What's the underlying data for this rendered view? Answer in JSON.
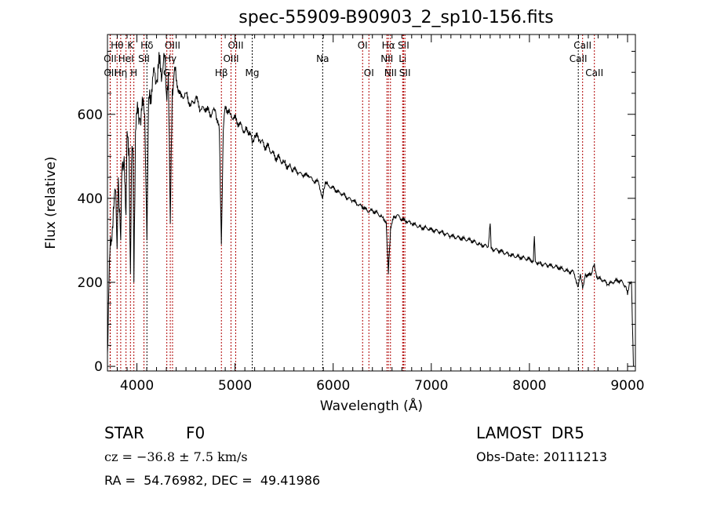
{
  "chart_data": {
    "type": "line",
    "title": "spec-55909-B90903_2_sp10-156.fits",
    "xlabel": "Wavelength (Å)",
    "ylabel": "Flux (relative)",
    "xlim": [
      3700,
      9080
    ],
    "ylim": [
      -11,
      790
    ],
    "xticks": [
      4000,
      5000,
      6000,
      7000,
      8000,
      9000
    ],
    "yticks": [
      0,
      200,
      400,
      600
    ],
    "grid": false,
    "series": [
      {
        "name": "spectrum",
        "points": [
          [
            3700,
            30
          ],
          [
            3710,
            150
          ],
          [
            3720,
            250
          ],
          [
            3740,
            300
          ],
          [
            3760,
            380
          ],
          [
            3780,
            420
          ],
          [
            3798,
            280
          ],
          [
            3810,
            450
          ],
          [
            3835,
            300
          ],
          [
            3850,
            480
          ],
          [
            3870,
            500
          ],
          [
            3889,
            360
          ],
          [
            3900,
            560
          ],
          [
            3920,
            520
          ],
          [
            3934,
            220
          ],
          [
            3945,
            480
          ],
          [
            3960,
            520
          ],
          [
            3969,
            200
          ],
          [
            3985,
            560
          ],
          [
            4000,
            600
          ],
          [
            4030,
            590
          ],
          [
            4060,
            620
          ],
          [
            4080,
            600
          ],
          [
            4102,
            300
          ],
          [
            4120,
            640
          ],
          [
            4150,
            660
          ],
          [
            4180,
            700
          ],
          [
            4200,
            680
          ],
          [
            4230,
            720
          ],
          [
            4260,
            700
          ],
          [
            4280,
            740
          ],
          [
            4300,
            650
          ],
          [
            4320,
            700
          ],
          [
            4340,
            340
          ],
          [
            4360,
            660
          ],
          [
            4380,
            700
          ],
          [
            4400,
            680
          ],
          [
            4450,
            640
          ],
          [
            4500,
            650
          ],
          [
            4550,
            620
          ],
          [
            4600,
            640
          ],
          [
            4650,
            610
          ],
          [
            4700,
            615
          ],
          [
            4750,
            600
          ],
          [
            4800,
            610
          ],
          [
            4840,
            560
          ],
          [
            4861,
            290
          ],
          [
            4880,
            560
          ],
          [
            4900,
            620
          ],
          [
            4950,
            600
          ],
          [
            5000,
            590
          ],
          [
            5050,
            575
          ],
          [
            5100,
            560
          ],
          [
            5150,
            560
          ],
          [
            5175,
            530
          ],
          [
            5200,
            550
          ],
          [
            5250,
            540
          ],
          [
            5300,
            525
          ],
          [
            5350,
            520
          ],
          [
            5400,
            500
          ],
          [
            5450,
            495
          ],
          [
            5500,
            485
          ],
          [
            5550,
            475
          ],
          [
            5600,
            470
          ],
          [
            5650,
            460
          ],
          [
            5700,
            455
          ],
          [
            5750,
            455
          ],
          [
            5800,
            440
          ],
          [
            5850,
            440
          ],
          [
            5893,
            400
          ],
          [
            5920,
            440
          ],
          [
            5950,
            430
          ],
          [
            6000,
            425
          ],
          [
            6050,
            415
          ],
          [
            6100,
            410
          ],
          [
            6150,
            400
          ],
          [
            6200,
            395
          ],
          [
            6250,
            385
          ],
          [
            6300,
            380
          ],
          [
            6350,
            370
          ],
          [
            6400,
            370
          ],
          [
            6450,
            365
          ],
          [
            6500,
            355
          ],
          [
            6540,
            345
          ],
          [
            6563,
            220
          ],
          [
            6585,
            330
          ],
          [
            6620,
            355
          ],
          [
            6650,
            360
          ],
          [
            6700,
            350
          ],
          [
            6750,
            345
          ],
          [
            6800,
            340
          ],
          [
            6850,
            335
          ],
          [
            6900,
            330
          ],
          [
            6950,
            330
          ],
          [
            7000,
            325
          ],
          [
            7100,
            320
          ],
          [
            7200,
            310
          ],
          [
            7300,
            305
          ],
          [
            7400,
            300
          ],
          [
            7500,
            290
          ],
          [
            7580,
            285
          ],
          [
            7600,
            340
          ],
          [
            7610,
            280
          ],
          [
            7700,
            275
          ],
          [
            7800,
            265
          ],
          [
            7900,
            260
          ],
          [
            8000,
            255
          ],
          [
            8040,
            250
          ],
          [
            8050,
            310
          ],
          [
            8060,
            250
          ],
          [
            8100,
            245
          ],
          [
            8200,
            240
          ],
          [
            8300,
            235
          ],
          [
            8400,
            225
          ],
          [
            8450,
            225
          ],
          [
            8498,
            190
          ],
          [
            8520,
            220
          ],
          [
            8542,
            185
          ],
          [
            8570,
            220
          ],
          [
            8600,
            215
          ],
          [
            8640,
            225
          ],
          [
            8662,
            245
          ],
          [
            8680,
            220
          ],
          [
            8700,
            210
          ],
          [
            8750,
            205
          ],
          [
            8800,
            195
          ],
          [
            8850,
            200
          ],
          [
            8900,
            205
          ],
          [
            8950,
            200
          ],
          [
            8980,
            190
          ],
          [
            9000,
            170
          ],
          [
            9020,
            200
          ],
          [
            9040,
            200
          ],
          [
            9050,
            100
          ],
          [
            9060,
            0
          ]
        ]
      }
    ],
    "lines": [
      {
        "label": "Hθ",
        "wave": 3798,
        "row": 0,
        "color": "#b00000"
      },
      {
        "label": "K",
        "wave": 3934,
        "row": 0,
        "color": "#b00000"
      },
      {
        "label": "Hδ",
        "wave": 4102,
        "row": 0,
        "color": "#000000"
      },
      {
        "label": "OIII",
        "wave": 4363,
        "row": 0,
        "color": "#b00000"
      },
      {
        "label": "OIII",
        "wave": 5007,
        "row": 0,
        "color": "#b00000"
      },
      {
        "label": "OII",
        "wave": 3727,
        "row": 1,
        "color": "#b00000"
      },
      {
        "label": "HeI",
        "wave": 3889,
        "row": 1,
        "color": "#b00000"
      },
      {
        "label": "SII",
        "wave": 4072,
        "row": 1,
        "color": "#b00000"
      },
      {
        "label": "Hγ",
        "wave": 4340,
        "row": 1,
        "color": "#b00000"
      },
      {
        "label": "OIII",
        "wave": 4959,
        "row": 1,
        "color": "#b00000"
      },
      {
        "label": "OII",
        "wave": 3729,
        "row": 2,
        "color": "#b00000"
      },
      {
        "label": "Hη",
        "wave": 3835,
        "row": 2,
        "color": "#b00000"
      },
      {
        "label": "H",
        "wave": 3969,
        "row": 2,
        "color": "#b00000"
      },
      {
        "label": "G",
        "wave": 4305,
        "row": 2,
        "color": "#b00000"
      },
      {
        "label": "Hβ",
        "wave": 4861,
        "row": 2,
        "color": "#b00000"
      },
      {
        "label": "Mg",
        "wave": 5175,
        "row": 2,
        "color": "#000000"
      },
      {
        "label": "Na",
        "wave": 5893,
        "row": 1,
        "color": "#000000"
      },
      {
        "label": "OI",
        "wave": 6300,
        "row": 0,
        "color": "#b00000"
      },
      {
        "label": "OI",
        "wave": 6364,
        "row": 2,
        "color": "#b00000"
      },
      {
        "label": "Hα",
        "wave": 6563,
        "row": 0,
        "color": "#b00000"
      },
      {
        "label": "SII",
        "wave": 6717,
        "row": 0,
        "color": "#b00000"
      },
      {
        "label": "NII",
        "wave": 6548,
        "row": 1,
        "color": "#b00000"
      },
      {
        "label": "Li",
        "wave": 6708,
        "row": 1,
        "color": "#b00000"
      },
      {
        "label": "NII",
        "wave": 6584,
        "row": 2,
        "color": "#b00000"
      },
      {
        "label": "SII",
        "wave": 6731,
        "row": 2,
        "color": "#b00000"
      },
      {
        "label": "CaII",
        "wave": 8542,
        "row": 0,
        "color": "#b00000"
      },
      {
        "label": "CaII",
        "wave": 8498,
        "row": 1,
        "color": "#000000"
      },
      {
        "label": "CaII",
        "wave": 8662,
        "row": 2,
        "color": "#b00000"
      }
    ]
  },
  "info": {
    "class": "STAR",
    "subclass": "F0",
    "cz": "cz = −36.8 ± 7.5 km/s",
    "coords": "RA =  54.76982, DEC =  49.41986",
    "survey": "LAMOST  DR5",
    "obs_date": "Obs-Date: 20111213"
  }
}
